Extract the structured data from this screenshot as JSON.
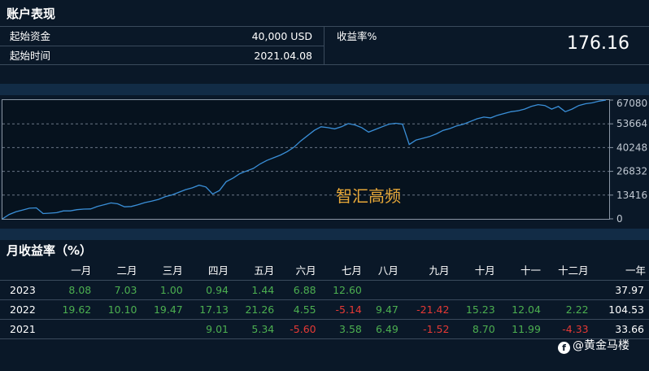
{
  "account": {
    "title": "账户表现",
    "start_capital_label": "起始资金",
    "start_capital_value": "40,000 USD",
    "start_time_label": "起始时间",
    "start_time_value": "2021.04.08",
    "return_label": "收益率%",
    "return_value": "176.16"
  },
  "chart_data": {
    "type": "line",
    "title": "",
    "watermark_text": "智汇高频",
    "ylim": [
      0,
      67080
    ],
    "y_ticks": [
      "0",
      "13416",
      "26832",
      "40248",
      "53664",
      "67080"
    ],
    "grid": "horizontal-dashed",
    "line_color": "#3a8fd8",
    "values": [
      0,
      2500,
      4000,
      5000,
      6000,
      6200,
      3000,
      3200,
      3500,
      4500,
      4500,
      5200,
      5500,
      5600,
      7000,
      8000,
      9000,
      8500,
      6800,
      7000,
      8000,
      9200,
      10000,
      11000,
      12500,
      13500,
      15000,
      16500,
      17500,
      19000,
      18000,
      14000,
      16000,
      21000,
      23000,
      25500,
      27000,
      28500,
      31000,
      33000,
      34500,
      36000,
      38000,
      40500,
      44000,
      47000,
      50000,
      52000,
      51500,
      50800,
      52000,
      53800,
      53000,
      51500,
      49000,
      50500,
      52000,
      53500,
      54000,
      53500,
      42000,
      44500,
      45500,
      46500,
      48000,
      50000,
      51000,
      52500,
      53500,
      55000,
      56500,
      57500,
      57000,
      58500,
      59500,
      60500,
      61000,
      62000,
      63500,
      64500,
      64000,
      62000,
      63500,
      60500,
      62000,
      64000,
      65000,
      65500,
      66500,
      67080
    ]
  },
  "monthly": {
    "title": "月收益率（%）",
    "headers": [
      "",
      "一月",
      "二月",
      "三月",
      "四月",
      "五月",
      "六月",
      "七月",
      "八月",
      "九月",
      "十月",
      "十一",
      "十二月",
      "一年"
    ],
    "rows": [
      {
        "year": "2023",
        "cells": [
          "8.08",
          "7.03",
          "1.00",
          "0.94",
          "1.44",
          "6.88",
          "12.60",
          "",
          "",
          "",
          "",
          ""
        ],
        "total": "37.97"
      },
      {
        "year": "2022",
        "cells": [
          "19.62",
          "10.10",
          "19.47",
          "17.13",
          "21.26",
          "4.55",
          "-5.14",
          "9.47",
          "-21.42",
          "15.23",
          "12.04",
          "2.22"
        ],
        "total": "104.53"
      },
      {
        "year": "2021",
        "cells": [
          "",
          "",
          "",
          "9.01",
          "5.34",
          "-5.60",
          "3.58",
          "6.49",
          "-1.52",
          "8.70",
          "11.99",
          "-4.33"
        ],
        "total": "33.66"
      }
    ]
  },
  "watermark": "@黄金马楼",
  "watermark_icon": "f-icon"
}
